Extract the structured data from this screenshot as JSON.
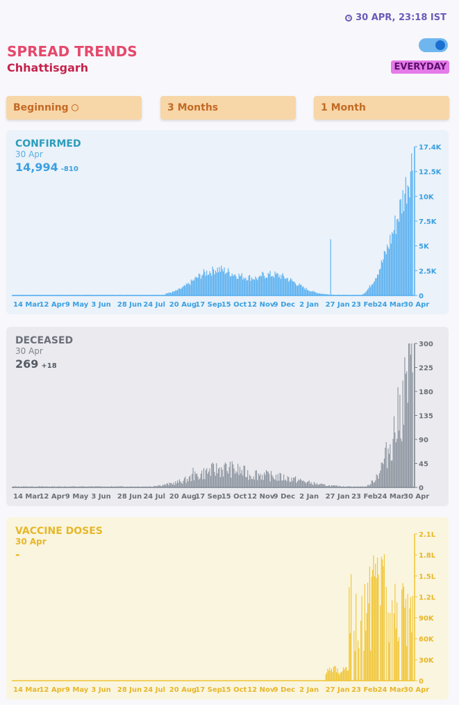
{
  "header": {
    "timestamp": "30 APR, 23:18 IST",
    "title": "SPREAD TRENDS",
    "state": "Chhattisgarh",
    "mode_badge": "EVERYDAY"
  },
  "timeframes": [
    {
      "label": "Beginning",
      "selected": true
    },
    {
      "label": "3 Months",
      "selected": false
    },
    {
      "label": "1 Month",
      "selected": false
    }
  ],
  "x_labels": [
    "14 Mar",
    "12 Apr",
    "9 May",
    "3 Jun",
    "28 Jun",
    "24 Jul",
    "20 Aug",
    "17 Sep",
    "15 Oct",
    "12 Nov",
    "9 Dec",
    "2 Jan",
    "27 Jan",
    "23 Feb",
    "24 Mar",
    "30 Apr"
  ],
  "colors": {
    "confirmed": "#55aef0",
    "deceased": "#8a929d",
    "vaccine": "#f0c432"
  },
  "charts": {
    "confirmed": {
      "label": "CONFIRMED",
      "date": "30 Apr",
      "value": "14,994",
      "delta": "-810",
      "y_ticks": [
        "17.4K",
        "12.5K",
        "10K",
        "7.5K",
        "5K",
        "2.5K",
        "0"
      ]
    },
    "deceased": {
      "label": "DECEASED",
      "date": "30 Apr",
      "value": "269",
      "delta": "+18",
      "y_ticks": [
        "300",
        "225",
        "180",
        "135",
        "90",
        "45",
        "0"
      ]
    },
    "vaccine": {
      "label": "VACCINE DOSES",
      "date": "30 Apr",
      "value": "-",
      "delta": "",
      "y_ticks": [
        "2.1L",
        "1.8L",
        "1.5L",
        "1.2L",
        "90K",
        "60K",
        "30K",
        "0"
      ]
    }
  }
}
